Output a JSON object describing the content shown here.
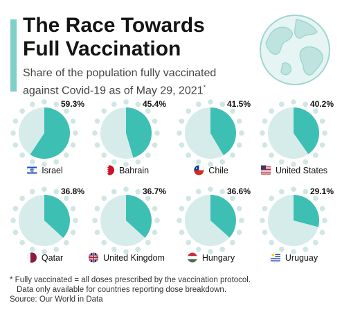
{
  "header": {
    "title_line1": "The Race Towards",
    "title_line2": "Full Vaccination",
    "subtitle_line1": "Share of the population fully vaccinated",
    "subtitle_line2": "against Covid-19 as of May 29, 2021",
    "subtitle_mark": "*"
  },
  "footer": {
    "note_line1": "* Fully vaccinated = all doses prescribed by the vaccination protocol.",
    "note_line2": "Data only available for countries reporting dose breakdown.",
    "source": "Source: Our World in Data"
  },
  "colors": {
    "accent": "#7fd0c6",
    "slice": "#3dbfb3",
    "pie_base": "#d5ecea",
    "dots": "#cfe6e4",
    "globe_land": "#bfe4e0",
    "globe_water": "#e6f4f3"
  },
  "chart_data": {
    "type": "pie",
    "unit": "%",
    "items": [
      {
        "country": "Israel",
        "value": 59.3,
        "label": "59.3%",
        "flag": "israel-flag"
      },
      {
        "country": "Bahrain",
        "value": 45.4,
        "label": "45.4%",
        "flag": "bahrain-flag"
      },
      {
        "country": "Chile",
        "value": 41.5,
        "label": "41.5%",
        "flag": "chile-flag"
      },
      {
        "country": "United States",
        "value": 40.2,
        "label": "40.2%",
        "flag": "usa-flag"
      },
      {
        "country": "Qatar",
        "value": 36.8,
        "label": "36.8%",
        "flag": "qatar-flag"
      },
      {
        "country": "United Kingdom",
        "value": 36.7,
        "label": "36.7%",
        "flag": "uk-flag"
      },
      {
        "country": "Hungary",
        "value": 36.6,
        "label": "36.6%",
        "flag": "hungary-flag"
      },
      {
        "country": "Uruguay",
        "value": 29.1,
        "label": "29.1%",
        "flag": "uruguay-flag"
      }
    ]
  }
}
